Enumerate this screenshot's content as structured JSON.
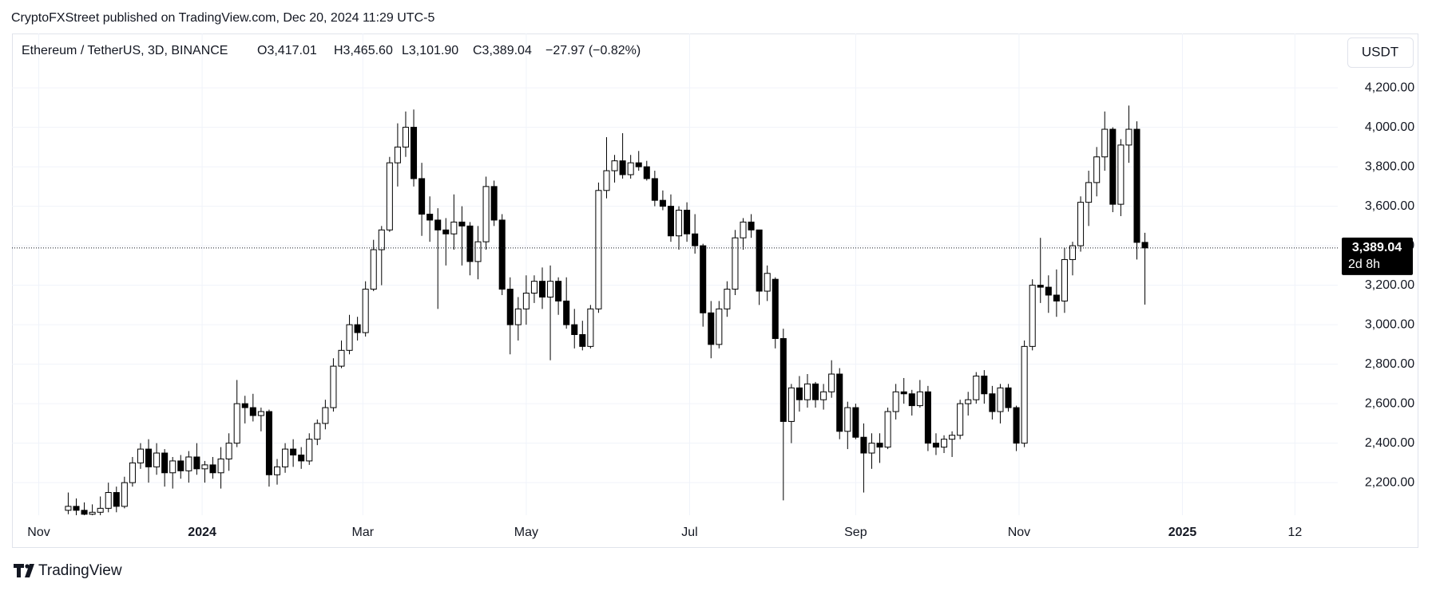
{
  "header": {
    "text": "CryptoFXStreet published on TradingView.com, Dec 20, 2024 11:29 UTC-5"
  },
  "footer": {
    "brand": "TradingView"
  },
  "chart_data": {
    "type": "candlestick",
    "symbol": "Ethereum / TetherUS, 3D, BINANCE",
    "legend": {
      "open": "O3,417.01",
      "high": "H3,465.60",
      "low": "L3,101.90",
      "close": "C3,389.04",
      "change": "−27.97 (−0.82%)"
    },
    "currency": "USDT",
    "last_price_label": "3,389.04",
    "countdown": "2d 8h",
    "up_color": "#ffffff",
    "down_color": "#000000",
    "wick_color": "#000000",
    "grid": true,
    "xlim": [
      "2023-10-22",
      "2025-02-28"
    ],
    "xticks": [
      {
        "value": "2023-11-01",
        "label": "Nov"
      },
      {
        "value": "2024-01-01",
        "label": "2024"
      },
      {
        "value": "2024-03-01",
        "label": "Mar"
      },
      {
        "value": "2024-05-01",
        "label": "May"
      },
      {
        "value": "2024-07-01",
        "label": "Jul"
      },
      {
        "value": "2024-09-01",
        "label": "Sep"
      },
      {
        "value": "2024-11-01",
        "label": "Nov"
      },
      {
        "value": "2025-01-01",
        "label": "2025"
      },
      {
        "value": "2025-02-12",
        "label": "12"
      }
    ],
    "ylim": [
      2035,
      4475
    ],
    "yticks": [
      {
        "value": 2200,
        "label": "2,200.00"
      },
      {
        "value": 2400,
        "label": "2,400.00"
      },
      {
        "value": 2600,
        "label": "2,600.00"
      },
      {
        "value": 2800,
        "label": "2,800.00"
      },
      {
        "value": 3000,
        "label": "3,000.00"
      },
      {
        "value": 3200,
        "label": "3,200.00"
      },
      {
        "value": 3400,
        "label": "3,400.00"
      },
      {
        "value": 3600,
        "label": "3,600.00"
      },
      {
        "value": 3800,
        "label": "3,800.00"
      },
      {
        "value": 4000,
        "label": "4,000.00"
      },
      {
        "value": 4200,
        "label": "4,200.00"
      }
    ],
    "x": [
      "2023-11-12",
      "2023-11-15",
      "2023-11-18",
      "2023-11-21",
      "2023-11-24",
      "2023-11-27",
      "2023-11-30",
      "2023-12-03",
      "2023-12-06",
      "2023-12-09",
      "2023-12-12",
      "2023-12-15",
      "2023-12-18",
      "2023-12-21",
      "2023-12-24",
      "2023-12-27",
      "2023-12-30",
      "2024-01-02",
      "2024-01-05",
      "2024-01-08",
      "2024-01-11",
      "2024-01-14",
      "2024-01-17",
      "2024-01-20",
      "2024-01-23",
      "2024-01-26",
      "2024-01-29",
      "2024-02-01",
      "2024-02-04",
      "2024-02-07",
      "2024-02-10",
      "2024-02-13",
      "2024-02-16",
      "2024-02-19",
      "2024-02-22",
      "2024-02-25",
      "2024-02-28",
      "2024-03-02",
      "2024-03-05",
      "2024-03-08",
      "2024-03-11",
      "2024-03-14",
      "2024-03-17",
      "2024-03-20",
      "2024-03-23",
      "2024-03-26",
      "2024-03-29",
      "2024-04-01",
      "2024-04-04",
      "2024-04-07",
      "2024-04-10",
      "2024-04-13",
      "2024-04-16",
      "2024-04-19",
      "2024-04-22",
      "2024-04-25",
      "2024-04-28",
      "2024-05-01",
      "2024-05-04",
      "2024-05-07",
      "2024-05-10",
      "2024-05-13",
      "2024-05-16",
      "2024-05-19",
      "2024-05-22",
      "2024-05-25",
      "2024-05-28",
      "2024-05-31",
      "2024-06-03",
      "2024-06-06",
      "2024-06-09",
      "2024-06-12",
      "2024-06-15",
      "2024-06-18",
      "2024-06-21",
      "2024-06-24",
      "2024-06-27",
      "2024-06-30",
      "2024-07-03",
      "2024-07-06",
      "2024-07-09",
      "2024-07-12",
      "2024-07-15",
      "2024-07-18",
      "2024-07-21",
      "2024-07-24",
      "2024-07-27",
      "2024-07-30",
      "2024-08-02",
      "2024-08-05",
      "2024-08-08",
      "2024-08-11",
      "2024-08-14",
      "2024-08-17",
      "2024-08-20",
      "2024-08-23",
      "2024-08-26",
      "2024-08-29",
      "2024-09-01",
      "2024-09-04",
      "2024-09-07",
      "2024-09-10",
      "2024-09-13",
      "2024-09-16",
      "2024-09-19",
      "2024-09-22",
      "2024-09-25",
      "2024-09-28",
      "2024-10-01",
      "2024-10-04",
      "2024-10-07",
      "2024-10-10",
      "2024-10-13",
      "2024-10-16",
      "2024-10-19",
      "2024-10-22",
      "2024-10-25",
      "2024-10-28",
      "2024-10-31",
      "2024-11-03",
      "2024-11-06",
      "2024-11-09",
      "2024-11-12",
      "2024-11-15",
      "2024-11-18",
      "2024-11-21",
      "2024-11-24",
      "2024-11-27",
      "2024-11-30",
      "2024-12-03",
      "2024-12-06",
      "2024-12-09",
      "2024-12-12",
      "2024-12-15",
      "2024-12-18"
    ],
    "open": [
      2060,
      2080,
      2060,
      2040,
      2050,
      2070,
      2150,
      2080,
      2200,
      2300,
      2370,
      2280,
      2350,
      2250,
      2310,
      2260,
      2330,
      2270,
      2290,
      2250,
      2320,
      2400,
      2600,
      2580,
      2540,
      2560,
      2240,
      2280,
      2370,
      2340,
      2310,
      2420,
      2500,
      2580,
      2790,
      2870,
      3000,
      2960,
      3180,
      3380,
      3480,
      3820,
      3900,
      4000,
      3740,
      3560,
      3530,
      3480,
      3460,
      3520,
      3500,
      3320,
      3420,
      3700,
      3530,
      3180,
      3000,
      3080,
      3160,
      3220,
      3140,
      3220,
      3120,
      3000,
      2950,
      2890,
      3080,
      3680,
      3780,
      3830,
      3760,
      3820,
      3800,
      3740,
      3630,
      3600,
      3450,
      3580,
      3460,
      3400,
      3060,
      2900,
      3080,
      3180,
      3440,
      3520,
      3480,
      3170,
      3230,
      2930,
      2510,
      2680,
      2620,
      2700,
      2620,
      2660,
      2750,
      2460,
      2580,
      2430,
      2350,
      2400,
      2380,
      2560,
      2660,
      2650,
      2590,
      2660,
      2400,
      2380,
      2420,
      2440,
      2600,
      2620,
      2740,
      2650,
      2560,
      2680,
      2580,
      2400,
      2890,
      3200,
      3190,
      3150,
      3120,
      3330,
      3400,
      3620,
      3720,
      3850,
      3990,
      3610,
      3910,
      3990,
      3417.01
    ],
    "high": [
      2150,
      2120,
      2100,
      2090,
      2130,
      2200,
      2180,
      2230,
      2330,
      2400,
      2420,
      2400,
      2370,
      2330,
      2340,
      2360,
      2400,
      2310,
      2330,
      2380,
      2450,
      2720,
      2640,
      2650,
      2580,
      2570,
      2320,
      2400,
      2420,
      2380,
      2450,
      2520,
      2620,
      2830,
      2920,
      3050,
      3040,
      3220,
      3430,
      3500,
      3850,
      4020,
      4080,
      4090,
      3820,
      3650,
      3590,
      3540,
      3660,
      3600,
      3520,
      3500,
      3750,
      3730,
      3560,
      3240,
      3140,
      3250,
      3250,
      3290,
      3300,
      3240,
      3240,
      3080,
      3020,
      3100,
      3720,
      3950,
      3860,
      3970,
      3860,
      3880,
      3830,
      3780,
      3680,
      3660,
      3600,
      3620,
      3560,
      3410,
      3120,
      3120,
      3220,
      3480,
      3540,
      3560,
      3480,
      3300,
      3240,
      2980,
      2700,
      2740,
      2750,
      2710,
      2700,
      2820,
      2780,
      2610,
      2600,
      2500,
      2450,
      2450,
      2580,
      2700,
      2730,
      2670,
      2720,
      2690,
      2450,
      2440,
      2460,
      2620,
      2660,
      2760,
      2770,
      2690,
      2700,
      2700,
      2590,
      2920,
      3230,
      3440,
      3250,
      3280,
      3390,
      3420,
      3650,
      3780,
      3900,
      4080,
      4000,
      3940,
      4110,
      4030,
      3465.6
    ],
    "low": [
      2040,
      2030,
      2000,
      1990,
      2020,
      2050,
      2050,
      2070,
      2180,
      2270,
      2200,
      2240,
      2180,
      2170,
      2220,
      2200,
      2240,
      2200,
      2220,
      2170,
      2260,
      2380,
      2500,
      2510,
      2460,
      2180,
      2190,
      2250,
      2280,
      2270,
      2290,
      2390,
      2470,
      2560,
      2780,
      2850,
      2920,
      2940,
      3170,
      3200,
      3470,
      3700,
      3850,
      3700,
      3450,
      3420,
      3080,
      3300,
      3380,
      3300,
      3250,
      3230,
      3380,
      3500,
      3150,
      2850,
      2920,
      3000,
      3110,
      3080,
      2820,
      3050,
      2980,
      2880,
      2870,
      2880,
      3060,
      3640,
      3720,
      3740,
      3740,
      3780,
      3730,
      3600,
      3580,
      3420,
      3380,
      3420,
      3360,
      2990,
      2830,
      2880,
      3040,
      3150,
      3380,
      3440,
      3100,
      3120,
      2880,
      2110,
      2400,
      2560,
      2580,
      2580,
      2570,
      2630,
      2420,
      2370,
      2420,
      2150,
      2270,
      2300,
      2370,
      2520,
      2600,
      2540,
      2580,
      2360,
      2340,
      2350,
      2330,
      2420,
      2540,
      2600,
      2600,
      2520,
      2500,
      2560,
      2360,
      2380,
      2870,
      3110,
      3060,
      3040,
      3060,
      3250,
      3370,
      3500,
      3650,
      3780,
      3570,
      3550,
      3820,
      3330,
      3101.9
    ],
    "close": [
      2080,
      2060,
      2040,
      2050,
      2070,
      2150,
      2080,
      2200,
      2300,
      2370,
      2280,
      2350,
      2250,
      2310,
      2260,
      2330,
      2270,
      2290,
      2250,
      2320,
      2400,
      2600,
      2580,
      2540,
      2560,
      2240,
      2280,
      2370,
      2340,
      2310,
      2420,
      2500,
      2580,
      2790,
      2870,
      3000,
      2960,
      3180,
      3380,
      3480,
      3820,
      3900,
      4000,
      3740,
      3560,
      3530,
      3480,
      3460,
      3520,
      3500,
      3320,
      3420,
      3700,
      3530,
      3180,
      3000,
      3080,
      3160,
      3220,
      3140,
      3220,
      3120,
      3000,
      2950,
      2890,
      3080,
      3680,
      3780,
      3830,
      3760,
      3820,
      3800,
      3740,
      3630,
      3600,
      3450,
      3580,
      3460,
      3400,
      3060,
      2900,
      3080,
      3180,
      3440,
      3520,
      3480,
      3170,
      3260,
      2930,
      2510,
      2680,
      2620,
      2700,
      2620,
      2660,
      2750,
      2460,
      2580,
      2430,
      2350,
      2400,
      2380,
      2560,
      2660,
      2650,
      2590,
      2660,
      2400,
      2380,
      2420,
      2440,
      2600,
      2620,
      2740,
      2650,
      2560,
      2680,
      2580,
      2400,
      2890,
      3200,
      3190,
      3150,
      3120,
      3330,
      3400,
      3620,
      3720,
      3850,
      3990,
      3610,
      3910,
      3990,
      3417,
      3389.04
    ]
  }
}
